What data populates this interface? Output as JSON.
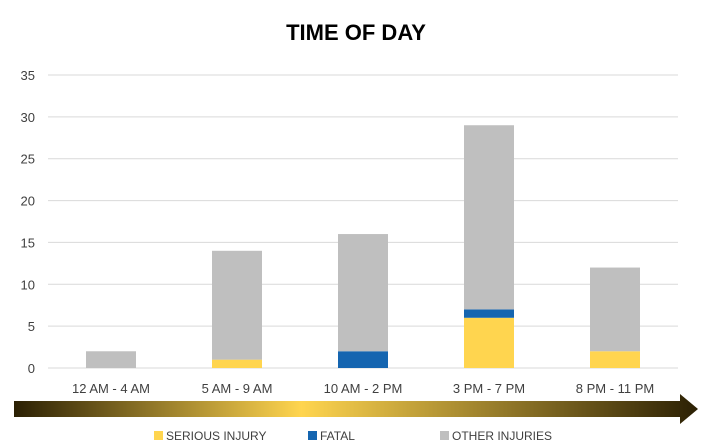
{
  "chart_data": {
    "type": "bar",
    "stacked": true,
    "title": "TIME OF DAY",
    "xlabel": "",
    "ylabel": "",
    "categories": [
      "12 AM - 4 AM",
      "5 AM - 9 AM",
      "10 AM - 2 PM",
      "3 PM - 7 PM",
      "8 PM - 11 PM"
    ],
    "series": [
      {
        "name": "SERIOUS INJURY",
        "color": "#FFD54F",
        "values": [
          0,
          1,
          0,
          6,
          2
        ]
      },
      {
        "name": "FATAL",
        "color": "#1565B0",
        "values": [
          0,
          0,
          2,
          1,
          0
        ]
      },
      {
        "name": "OTHER INJURIES",
        "color": "#BFBFBF",
        "values": [
          2,
          13,
          14,
          22,
          10
        ]
      }
    ],
    "ylim": [
      0,
      35
    ],
    "yticks": [
      0,
      5,
      10,
      15,
      20,
      25,
      30,
      35
    ],
    "grid": true,
    "legend_position": "bottom",
    "time_arrow": {
      "colors": [
        "#2b2004",
        "#FFD54F",
        "#2b2004"
      ]
    }
  }
}
